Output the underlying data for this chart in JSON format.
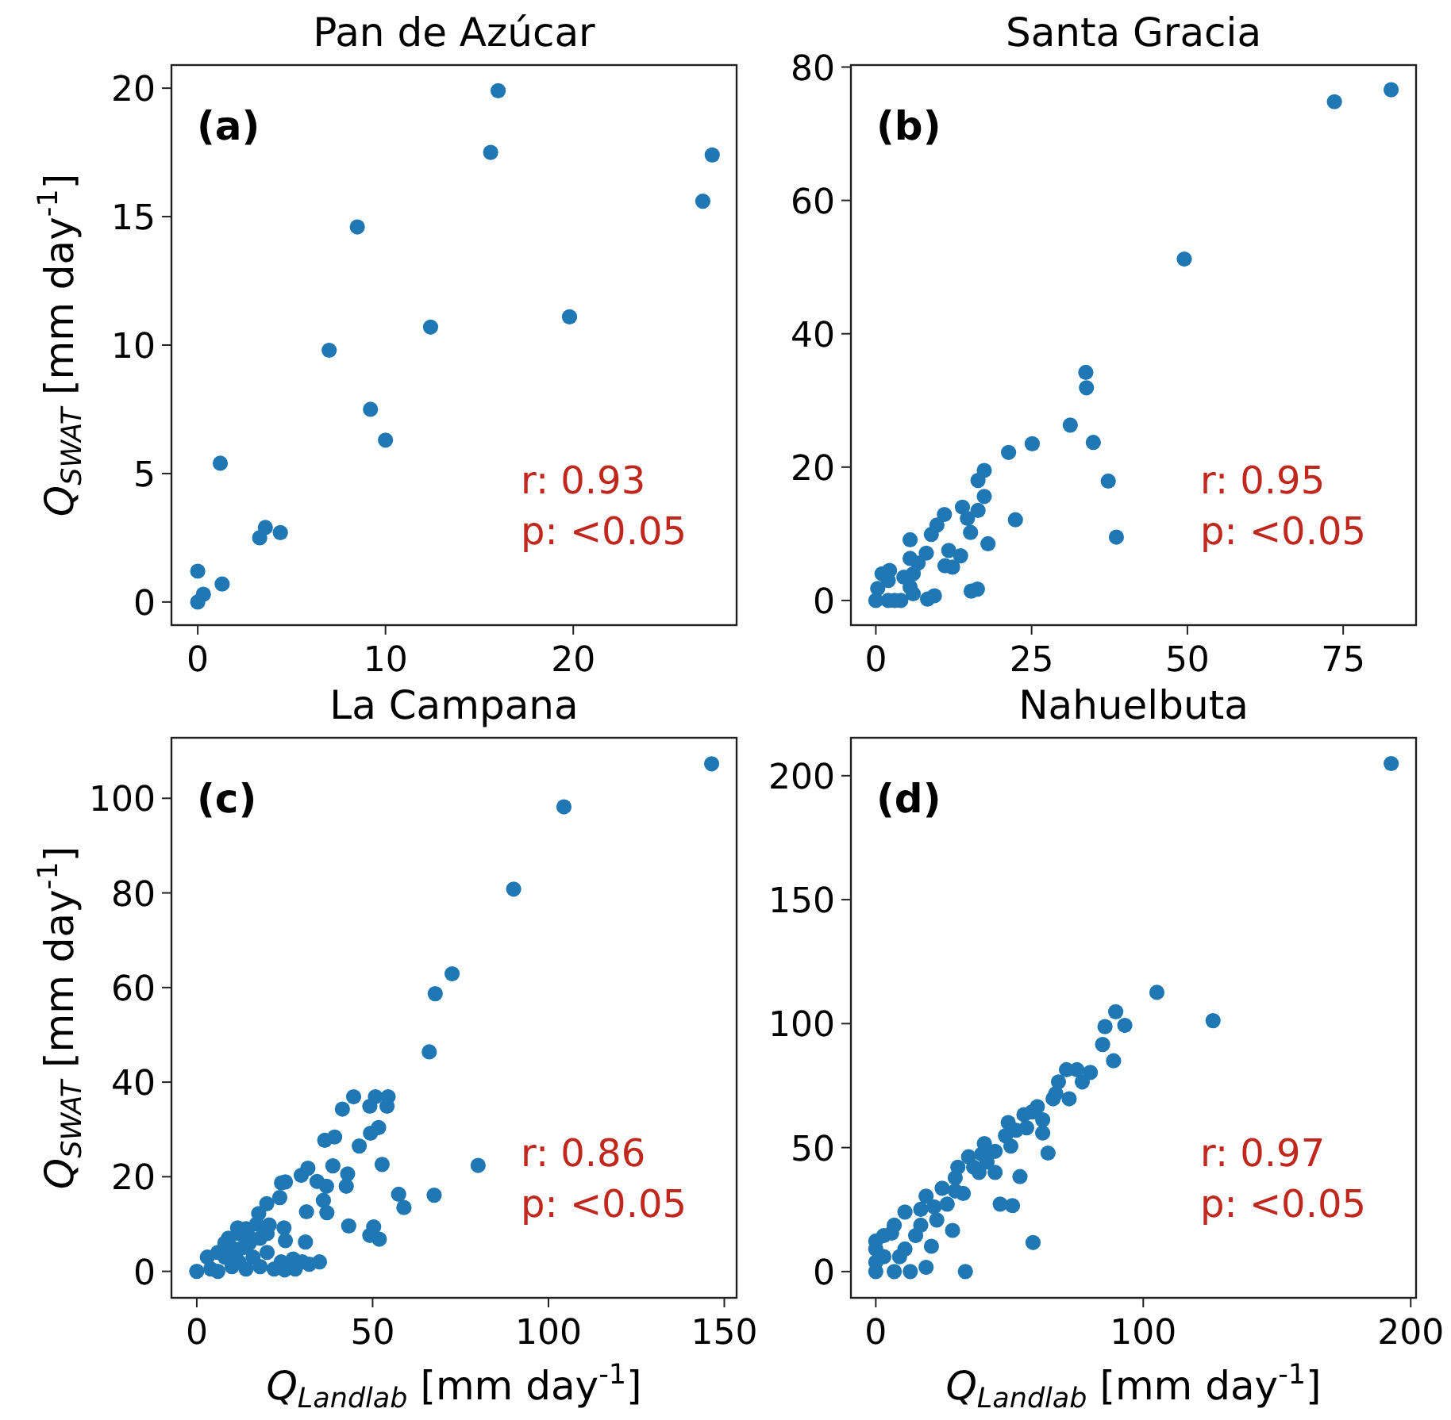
{
  "chart_data": [
    {
      "type": "scatter",
      "title": "Pan de Azúcar",
      "ylabel": "Q$_{SWAT}$ [mm day$^{-1}$]",
      "color": "#1f77b4",
      "marker": "circle",
      "x": [
        16.0,
        15.6,
        27.4,
        26.9,
        8.5,
        19.8,
        12.4,
        7.0,
        9.2,
        10.0,
        1.2,
        3.6,
        3.3,
        4.4,
        1.3,
        0,
        0.3,
        0
      ],
      "values": [
        19.9,
        17.5,
        17.4,
        15.6,
        14.6,
        11.1,
        10.7,
        9.8,
        7.5,
        6.3,
        5.4,
        2.9,
        2.5,
        2.7,
        0.7,
        1.2,
        0.3,
        0.0
      ],
      "xlim": [
        -1.4,
        28.7
      ],
      "ylim": [
        -0.9,
        20.9
      ],
      "xticks": [
        0,
        10,
        20
      ],
      "yticks": [
        0,
        5,
        10,
        15,
        20
      ],
      "annotations": [
        "(a)",
        "r: 0.93",
        "p: <0.05"
      ]
    },
    {
      "type": "scatter",
      "title": "Santa Gracia",
      "color": "#1f77b4",
      "marker": "circle",
      "x": [
        82.7,
        73.6,
        49.5,
        33.7,
        33.8,
        31.2,
        25.1,
        21.3,
        34.9,
        37.3,
        38.6,
        22.4,
        17.4,
        16.4,
        17.4,
        16.4,
        13.9,
        14.7,
        11.0,
        9.8,
        8.9,
        15.2,
        18.0,
        5.5,
        11.7,
        13.6,
        8.1,
        11.1,
        12.3,
        5.5,
        6.8,
        15.3,
        16.3,
        8.3,
        9.4,
        0,
        2,
        3,
        4.5,
        5.5,
        6,
        1,
        2,
        4,
        0.3,
        6,
        2.2
      ],
      "values": [
        76.6,
        74.8,
        51.2,
        34.2,
        31.9,
        26.3,
        23.5,
        22.2,
        23.7,
        17.9,
        9.5,
        12.1,
        19.5,
        18.0,
        15.6,
        13.5,
        14.0,
        12.3,
        12.9,
        11.3,
        9.9,
        10.2,
        8.5,
        9.1,
        7.5,
        6.7,
        7.1,
        5.2,
        5.0,
        6.3,
        5.6,
        1.4,
        1.7,
        0.2,
        0.7,
        0,
        3,
        0,
        3.5,
        2,
        1,
        4,
        0,
        0,
        1.8,
        4,
        4.5
      ],
      "xlim": [
        -4.0,
        86.7
      ],
      "ylim": [
        -3.7,
        80.3
      ],
      "xticks": [
        0,
        25,
        50,
        75
      ],
      "yticks": [
        0,
        20,
        40,
        60,
        80
      ],
      "annotations": [
        "(b)",
        "r: 0.95",
        "p: <0.05"
      ]
    },
    {
      "type": "scatter",
      "title": "La Campana",
      "xlabel": "Q$_{Landlab}$ [mm day$^{-1}$]",
      "ylabel": "Q$_{SWAT}$ [mm day$^{-1}$]",
      "color": "#1f77b4",
      "marker": "circle",
      "x": [
        146.4,
        104.4,
        90.1,
        72.6,
        67.8,
        66.1,
        80.0,
        67.5,
        44.6,
        41.4,
        50.8,
        49.2,
        54.4,
        54.1,
        51.7,
        49.4,
        46.2,
        39.2,
        36.4,
        52.7,
        38.7,
        42.9,
        42.5,
        31.6,
        29.7,
        25.2,
        24.1,
        34.2,
        36.9,
        36.0,
        31.2,
        37.0,
        57.4,
        58.9,
        43.2,
        50.3,
        49.2,
        51.9,
        30.9,
        34.9,
        23.6,
        19.9,
        17.6,
        20.6,
        24.8,
        11.6,
        14.6,
        25.2,
        27.4,
        0,
        4,
        6,
        8,
        10,
        10,
        12,
        14,
        15,
        16,
        18,
        20,
        22,
        24,
        28,
        30,
        3,
        6,
        9,
        12,
        14,
        17,
        18,
        20,
        11,
        13,
        8,
        25,
        32
      ],
      "values": [
        107.3,
        98.2,
        80.8,
        62.9,
        58.7,
        46.4,
        22.4,
        16.1,
        36.9,
        34.3,
        36.9,
        34.9,
        36.9,
        34.9,
        30.4,
        29.2,
        26.5,
        28.4,
        27.7,
        22.6,
        22.3,
        20.6,
        18.0,
        21.8,
        20.3,
        18.9,
        18.7,
        19.0,
        18.0,
        15.0,
        12.6,
        12.4,
        16.3,
        13.5,
        9.6,
        9.4,
        7.6,
        6.8,
        6.2,
        2.0,
        15.6,
        14.3,
        12.2,
        9.8,
        9.2,
        9.2,
        7.6,
        6.5,
        2.6,
        0,
        0.5,
        0,
        3,
        1,
        5,
        2,
        0.5,
        6,
        3,
        1,
        4,
        0.5,
        2,
        0.5,
        2,
        3,
        4,
        7,
        8,
        9,
        10,
        7,
        8,
        3.5,
        5,
        6,
        0.3,
        1.5
      ],
      "xlim": [
        -7.2,
        153.5
      ],
      "ylim": [
        -5.6,
        112.8
      ],
      "xticks": [
        0,
        50,
        100,
        150
      ],
      "yticks": [
        0,
        20,
        40,
        60,
        80,
        100
      ],
      "annotations": [
        "(c)",
        "r: 0.86",
        "p: <0.05"
      ]
    },
    {
      "type": "scatter",
      "title": "Nahuelbuta",
      "xlabel": "Q$_{Landlab}$ [mm day$^{-1}$]",
      "color": "#1f77b4",
      "marker": "circle",
      "x": [
        192.7,
        105.1,
        126.1,
        89.7,
        93.1,
        85.7,
        84.8,
        88.9,
        58.8,
        33.5,
        64.4,
        53.9,
        51.1,
        46.5,
        71.3,
        75.2,
        80.2,
        77.2,
        68.3,
        67.3,
        72.3,
        60.4,
        55.4,
        62.4,
        49.5,
        56.4,
        62.4,
        48.5,
        40.6,
        44.6,
        39.6,
        34.7,
        36.6,
        30.7,
        44.6,
        29.7,
        24.8,
        32.7,
        18.8,
        26.7,
        16.8,
        10.9,
        22.8,
        6.9,
        28.7,
        14.9,
        3.0,
        20.8,
        0,
        8.9,
        18.8,
        0,
        6.9,
        12.9,
        0,
        3.0,
        0,
        10.9,
        5.9,
        16.8,
        21.8,
        29.7,
        38.6,
        41.6,
        50.5,
        52.5,
        58.4,
        66.3
      ],
      "values": [
        204.9,
        112.6,
        101.2,
        104.8,
        99.3,
        98.8,
        91.6,
        85.0,
        11.7,
        0,
        47.8,
        38.3,
        26.6,
        27.2,
        81.4,
        81.4,
        80.3,
        76.5,
        76.5,
        71.8,
        69.7,
        66.5,
        63.3,
        61.2,
        60.1,
        58.0,
        55.9,
        54.8,
        51.6,
        48.5,
        47.4,
        46.3,
        42.1,
        42.1,
        40.0,
        37.8,
        33.6,
        31.5,
        30.4,
        27.2,
        25.1,
        24.0,
        20.8,
        18.7,
        16.6,
        14.5,
        14.5,
        10.2,
        9.1,
        6.0,
        1.7,
        0,
        0,
        0,
        3.8,
        6.0,
        12.3,
        9.1,
        15.5,
        18.7,
        26.1,
        32.5,
        40.0,
        44.2,
        50.6,
        57.0,
        64.4,
        69.7
      ],
      "xlim": [
        -9.3,
        202.0
      ],
      "ylim": [
        -10.6,
        215.3
      ],
      "xticks": [
        0,
        100,
        200
      ],
      "yticks": [
        0,
        50,
        100,
        150,
        200
      ],
      "annotations": [
        "(d)",
        "r: 0.97",
        "p: <0.05"
      ]
    }
  ]
}
